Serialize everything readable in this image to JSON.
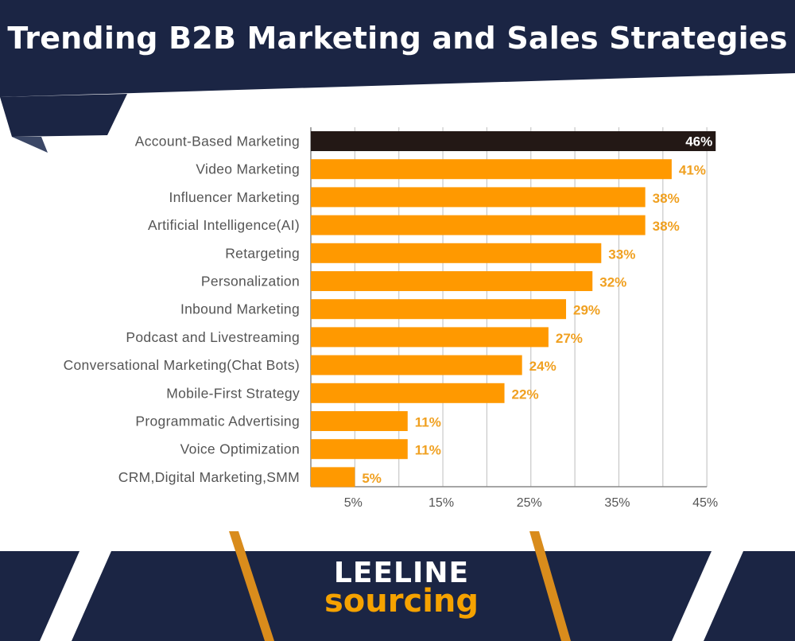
{
  "title": "Trending B2B Marketing and Sales Strategies",
  "brand": {
    "line1": "LEELINE",
    "line2": "sourcing"
  },
  "colors": {
    "navy": "#1b2544",
    "bar": "#ff9900",
    "highlight": "#231815",
    "label": "#f0a020",
    "grid": "#c8c8c8",
    "text": "#555555"
  },
  "chart_data": {
    "type": "bar",
    "orientation": "horizontal",
    "categories": [
      "Account-Based Marketing",
      "Video Marketing",
      "Influencer Marketing",
      "Artificial Intelligence(AI)",
      "Retargeting",
      "Personalization",
      "Inbound Marketing",
      "Podcast and Livestreaming",
      "Conversational Marketing(Chat Bots)",
      "Mobile-First Strategy",
      "Programmatic Advertising",
      "Voice Optimization",
      "CRM,Digital Marketing,SMM"
    ],
    "values": [
      46,
      41,
      38,
      38,
      33,
      32,
      29,
      27,
      24,
      22,
      11,
      11,
      5
    ],
    "value_labels": [
      "46%",
      "41%",
      "38%",
      "38%",
      "33%",
      "32%",
      "29%",
      "27%",
      "24%",
      "22%",
      "11%",
      "11%",
      "5%"
    ],
    "x_ticks": [
      5,
      15,
      25,
      35,
      45
    ],
    "x_tick_labels": [
      "5%",
      "15%",
      "25%",
      "35%",
      "45%"
    ],
    "xlim": [
      0,
      46
    ],
    "grid": true,
    "highlighted_category": "Account-Based Marketing"
  }
}
